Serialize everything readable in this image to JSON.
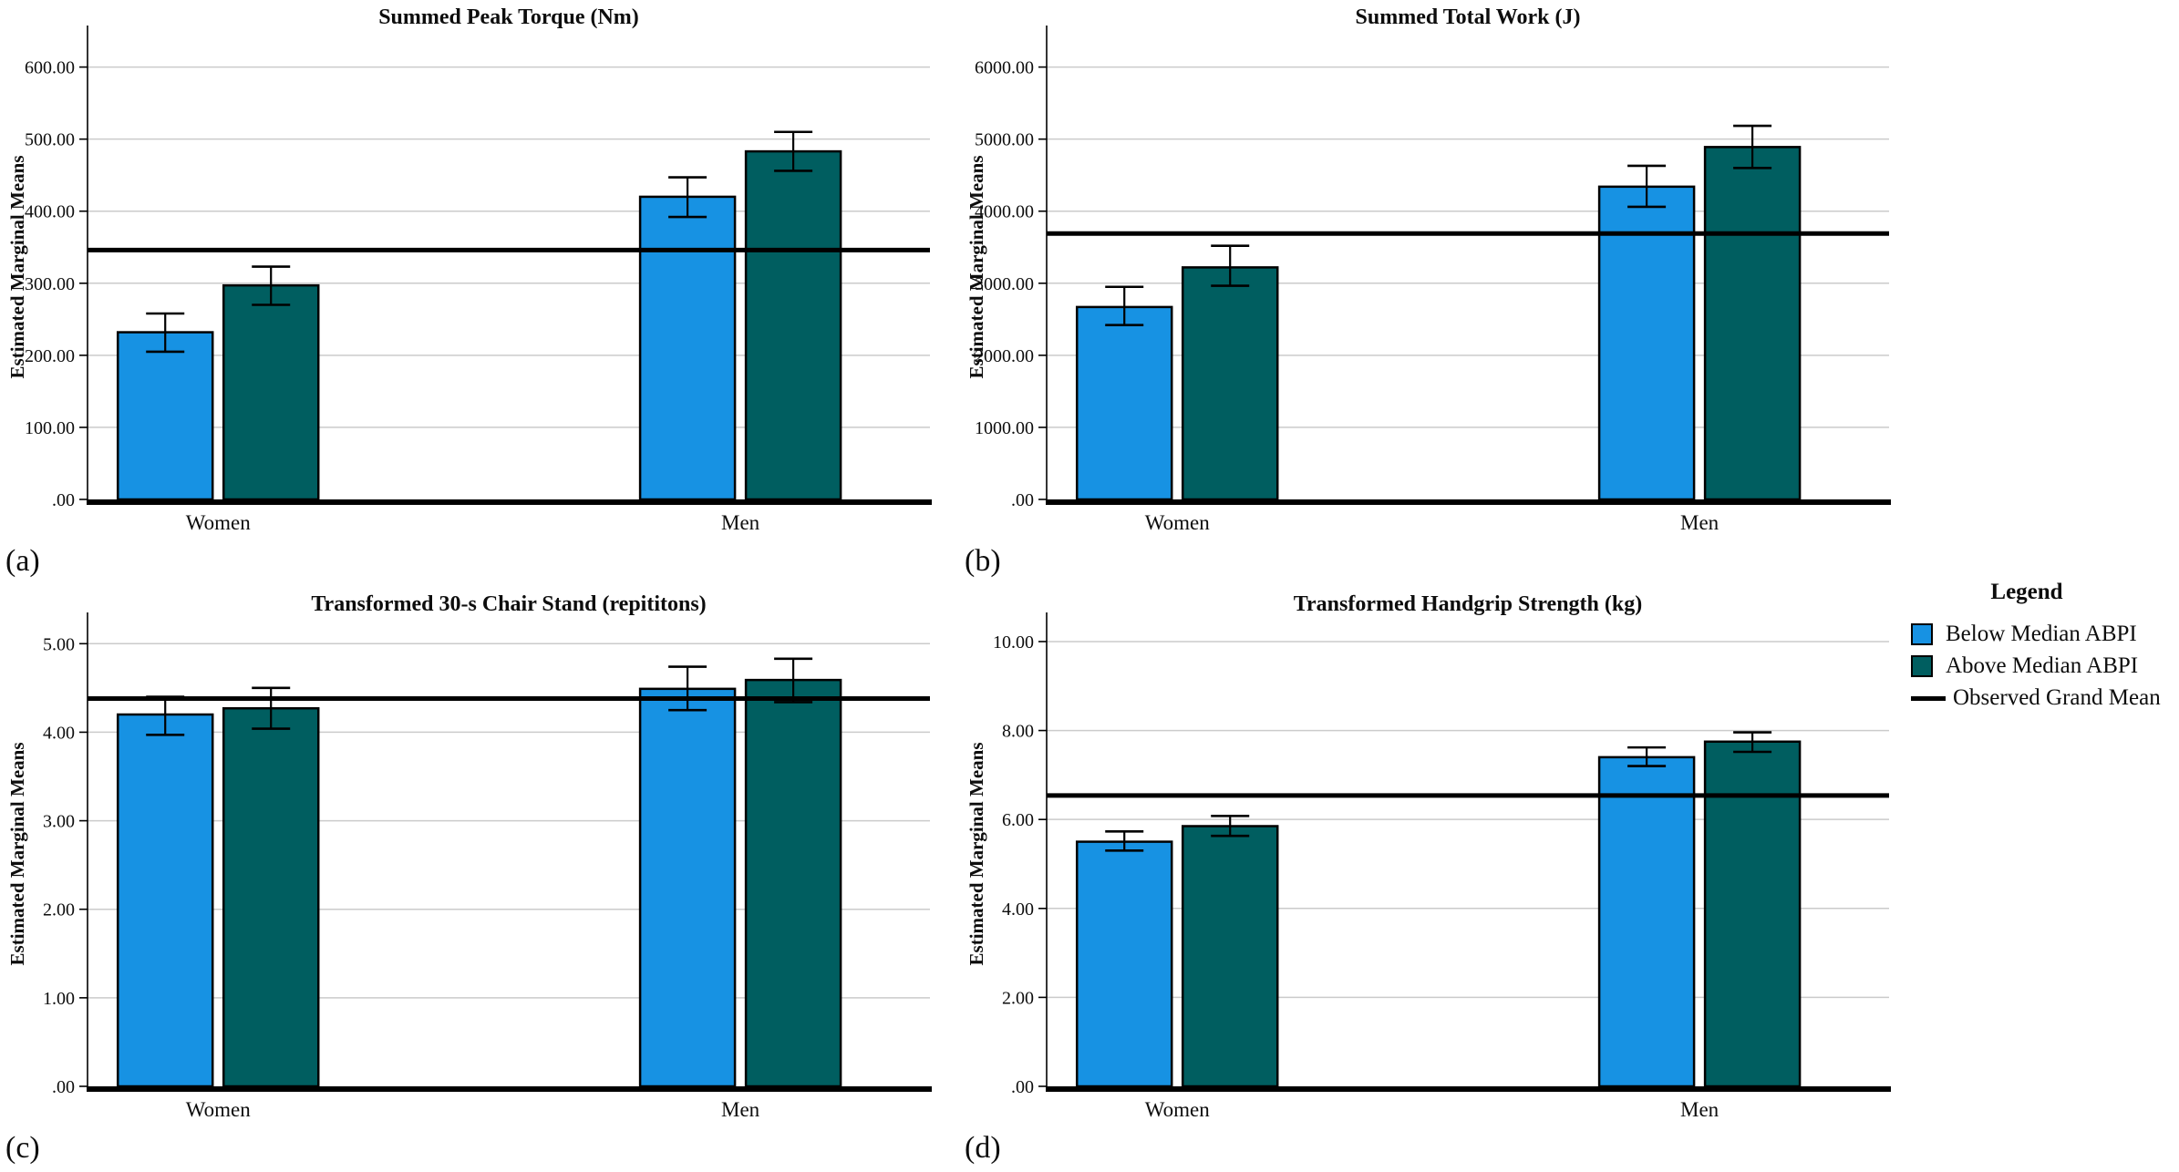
{
  "figure": {
    "ylabel": "Estimated Marginal Means",
    "categories": [
      "Women",
      "Men"
    ],
    "series_colors": [
      "#1792E3",
      "#005E60"
    ],
    "gridline_color": "#CBCBCB",
    "grand_mean_color": "#000000"
  },
  "legend": {
    "title": "Legend",
    "items": [
      {
        "label": "Below Median ABPI",
        "swatch": "square",
        "color": "#1792E3"
      },
      {
        "label": "Above Median ABPI",
        "swatch": "square",
        "color": "#005E60"
      },
      {
        "label": "Observed Grand Mean",
        "swatch": "line",
        "color": "#000000"
      }
    ]
  },
  "chart_data": [
    {
      "type": "bar",
      "letter": "(a)",
      "title": "Summed Peak Torque (Nm)",
      "ylabel": "Estimated Marginal Means",
      "xlabel": "",
      "categories": [
        "Women",
        "Men"
      ],
      "ytick_labels": [
        ".00",
        "100.00",
        "200.00",
        "300.00",
        "400.00",
        "500.00",
        "600.00"
      ],
      "ytick_values": [
        0,
        100,
        200,
        300,
        400,
        500,
        600
      ],
      "ymax": 645,
      "grand_mean": 346,
      "grid": true,
      "series": [
        {
          "name": "Below Median ABPI",
          "values": [
            232,
            420
          ],
          "ci_low": [
            205,
            392
          ],
          "ci_high": [
            258,
            447
          ]
        },
        {
          "name": "Above Median ABPI",
          "values": [
            297,
            483
          ],
          "ci_low": [
            270,
            456
          ],
          "ci_high": [
            323,
            510
          ]
        }
      ]
    },
    {
      "type": "bar",
      "letter": "(b)",
      "title": "Summed Total Work (J)",
      "ylabel": "Estimated Marginal Means",
      "xlabel": "",
      "categories": [
        "Women",
        "Men"
      ],
      "ytick_labels": [
        ".00",
        "1000.00",
        "2000.00",
        "3000.00",
        "4000.00",
        "5000.00",
        "6000.00"
      ],
      "ytick_values": [
        0,
        1000,
        2000,
        3000,
        4000,
        5000,
        6000
      ],
      "ymax": 6450,
      "grand_mean": 3690,
      "grid": true,
      "series": [
        {
          "name": "Below Median ABPI",
          "values": [
            2670,
            4340
          ],
          "ci_low": [
            2420,
            4060
          ],
          "ci_high": [
            2950,
            4630
          ]
        },
        {
          "name": "Above Median ABPI",
          "values": [
            3220,
            4890
          ],
          "ci_low": [
            2965,
            4600
          ],
          "ci_high": [
            3520,
            5185
          ]
        }
      ]
    },
    {
      "type": "bar",
      "letter": "(c)",
      "title": "Transformed 30-s Chair Stand (repititons)",
      "ylabel": "Estimated Marginal Means",
      "xlabel": "",
      "categories": [
        "Women",
        "Men"
      ],
      "ytick_labels": [
        ".00",
        "1.00",
        "2.00",
        "3.00",
        "4.00",
        "5.00"
      ],
      "ytick_values": [
        0,
        1,
        2,
        3,
        4,
        5
      ],
      "ymax": 5.25,
      "grand_mean": 4.38,
      "grid": true,
      "series": [
        {
          "name": "Below Median ABPI",
          "values": [
            4.2,
            4.49
          ],
          "ci_low": [
            3.97,
            4.25
          ],
          "ci_high": [
            4.4,
            4.74
          ]
        },
        {
          "name": "Above Median ABPI",
          "values": [
            4.27,
            4.59
          ],
          "ci_low": [
            4.04,
            4.34
          ],
          "ci_high": [
            4.5,
            4.83
          ]
        }
      ]
    },
    {
      "type": "bar",
      "letter": "(d)",
      "title": "Transformed Handgrip Strength (kg)",
      "ylabel": "Estimated Marginal Means",
      "xlabel": "",
      "categories": [
        "Women",
        "Men"
      ],
      "ytick_labels": [
        ".00",
        "2.00",
        "4.00",
        "6.00",
        "8.00",
        "10.00"
      ],
      "ytick_values": [
        0,
        2,
        4,
        6,
        8,
        10
      ],
      "ymax": 10.45,
      "grand_mean": 6.54,
      "grid": true,
      "series": [
        {
          "name": "Below Median ABPI",
          "values": [
            5.5,
            7.4
          ],
          "ci_low": [
            5.3,
            7.2
          ],
          "ci_high": [
            5.73,
            7.62
          ]
        },
        {
          "name": "Above Median ABPI",
          "values": [
            5.85,
            7.75
          ],
          "ci_low": [
            5.63,
            7.52
          ],
          "ci_high": [
            6.08,
            7.96
          ]
        }
      ]
    }
  ]
}
